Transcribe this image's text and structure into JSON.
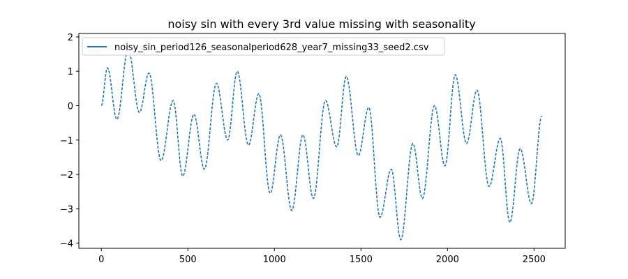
{
  "chart_data": {
    "type": "line",
    "title": "noisy sin with every 3rd value missing with seasonality",
    "xlabel": "",
    "ylabel": "",
    "xlim": [
      -130,
      2680
    ],
    "ylim": [
      -4.15,
      2.1
    ],
    "x_ticks": [
      0,
      500,
      1000,
      1500,
      2000,
      2500
    ],
    "y_ticks": [
      -4,
      -3,
      -2,
      -1,
      0,
      1,
      2
    ],
    "grid": false,
    "legend_position": "top-left",
    "series": [
      {
        "name": "noisy_sin_period126_seasonalperiod628_year7_missing33_seed2.csv",
        "color": "#1f77b4",
        "line_style": "dashed",
        "keypoints": [
          [
            0,
            0.0
          ],
          [
            35,
            1.1
          ],
          [
            90,
            -0.4
          ],
          [
            155,
            1.65
          ],
          [
            220,
            -0.2
          ],
          [
            275,
            0.95
          ],
          [
            345,
            -1.6
          ],
          [
            415,
            0.15
          ],
          [
            470,
            -2.05
          ],
          [
            535,
            -0.25
          ],
          [
            595,
            -1.85
          ],
          [
            665,
            0.65
          ],
          [
            730,
            -1.0
          ],
          [
            785,
            1.0
          ],
          [
            850,
            -1.15
          ],
          [
            910,
            0.35
          ],
          [
            975,
            -2.55
          ],
          [
            1035,
            -0.85
          ],
          [
            1100,
            -3.05
          ],
          [
            1165,
            -0.85
          ],
          [
            1225,
            -2.7
          ],
          [
            1295,
            0.15
          ],
          [
            1360,
            -1.2
          ],
          [
            1415,
            0.85
          ],
          [
            1485,
            -1.45
          ],
          [
            1545,
            -0.05
          ],
          [
            1610,
            -3.25
          ],
          [
            1675,
            -1.85
          ],
          [
            1730,
            -3.9
          ],
          [
            1800,
            -1.1
          ],
          [
            1855,
            -2.7
          ],
          [
            1925,
            0.0
          ],
          [
            1985,
            -1.75
          ],
          [
            2045,
            0.9
          ],
          [
            2110,
            -1.1
          ],
          [
            2170,
            0.45
          ],
          [
            2240,
            -2.35
          ],
          [
            2305,
            -0.95
          ],
          [
            2360,
            -3.4
          ],
          [
            2420,
            -1.25
          ],
          [
            2485,
            -2.85
          ],
          [
            2545,
            -0.3
          ]
        ]
      }
    ]
  }
}
